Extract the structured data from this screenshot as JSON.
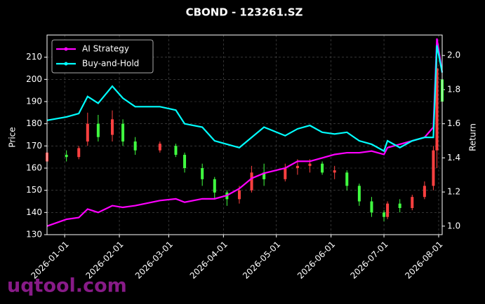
{
  "chart_data": {
    "type": "candlestick-lines",
    "title": "CBOND - 123261.SZ",
    "y_label": "Price",
    "y2_label": "Return",
    "watermark": "uqtool.com",
    "x": [
      "2025-12-22",
      "2026-01-02",
      "2026-01-09",
      "2026-01-14",
      "2026-01-20",
      "2026-01-28",
      "2026-02-03",
      "2026-02-10",
      "2026-02-24",
      "2026-03-05",
      "2026-03-10",
      "2026-03-20",
      "2026-03-27",
      "2026-04-03",
      "2026-04-10",
      "2026-04-17",
      "2026-04-24",
      "2026-05-06",
      "2026-05-13",
      "2026-05-20",
      "2026-05-27",
      "2026-06-03",
      "2026-06-10",
      "2026-06-17",
      "2026-06-24",
      "2026-07-01",
      "2026-07-03",
      "2026-07-10",
      "2026-07-17",
      "2026-07-24",
      "2026-07-29",
      "2026-07-31",
      "2026-08-03"
    ],
    "open": [
      163,
      166,
      165,
      172,
      180,
      175,
      180,
      172,
      168,
      170,
      166,
      160,
      155,
      149,
      146,
      150,
      158,
      155,
      160,
      161,
      162,
      158,
      158,
      152,
      145,
      140,
      138,
      144,
      142,
      147,
      152,
      168,
      200
    ],
    "high": [
      176,
      168,
      170,
      185,
      184,
      186,
      182,
      174,
      172,
      171,
      167,
      162,
      156,
      150,
      152,
      161,
      162,
      162,
      164,
      164,
      163,
      161,
      159,
      153,
      147,
      141,
      145,
      146,
      148,
      154,
      170,
      215,
      205
    ],
    "low": [
      162,
      163,
      164,
      170,
      172,
      172,
      170,
      166,
      167,
      165,
      158,
      152,
      146,
      143,
      144,
      149,
      152,
      154,
      157,
      158,
      157,
      155,
      150,
      143,
      138,
      136,
      137,
      140,
      141,
      146,
      150,
      160,
      185
    ],
    "close": [
      167,
      165,
      169,
      180,
      174,
      182,
      172,
      168,
      171,
      166,
      160,
      155,
      149,
      146,
      150,
      158,
      155,
      160,
      161,
      162,
      158,
      159,
      152,
      145,
      140,
      138,
      144,
      142,
      147,
      152,
      168,
      205,
      190
    ],
    "up_color": "#ff4040",
    "down_color": "#40ff40",
    "series": [
      {
        "name": "AI Strategy",
        "color": "#ff00ff",
        "axis": "y2",
        "values": [
          1.0,
          1.04,
          1.05,
          1.1,
          1.08,
          1.12,
          1.11,
          1.12,
          1.15,
          1.16,
          1.14,
          1.16,
          1.16,
          1.18,
          1.22,
          1.28,
          1.31,
          1.34,
          1.38,
          1.38,
          1.4,
          1.42,
          1.43,
          1.43,
          1.44,
          1.42,
          1.46,
          1.48,
          1.5,
          1.52,
          1.58,
          2.1,
          1.9
        ]
      },
      {
        "name": "Buy-and-Hold",
        "color": "#00ffff",
        "axis": "y2",
        "values": [
          1.62,
          1.64,
          1.66,
          1.76,
          1.72,
          1.82,
          1.75,
          1.7,
          1.7,
          1.68,
          1.6,
          1.58,
          1.5,
          1.48,
          1.46,
          1.52,
          1.58,
          1.53,
          1.57,
          1.59,
          1.55,
          1.54,
          1.55,
          1.5,
          1.48,
          1.44,
          1.5,
          1.46,
          1.5,
          1.52,
          1.52,
          2.06,
          1.9
        ]
      }
    ],
    "xlim": [
      "2025-12-22",
      "2026-08-03"
    ],
    "xticks": [
      "2026-01-01",
      "2026-02-01",
      "2026-03-01",
      "2026-04-01",
      "2026-05-01",
      "2026-06-01",
      "2026-07-01",
      "2026-08-01"
    ],
    "ylim": [
      130,
      220
    ],
    "yticks": [
      130,
      140,
      150,
      160,
      170,
      180,
      190,
      200,
      210
    ],
    "y2lim": [
      0.95,
      2.12
    ],
    "y2ticks": [
      {
        "value": 1.0,
        "label": "1.0"
      },
      1.2,
      1.4,
      1.6,
      1.8,
      {
        "value": 2.0,
        "label": "2.0"
      }
    ],
    "grid": true,
    "legend": "upper-left"
  }
}
